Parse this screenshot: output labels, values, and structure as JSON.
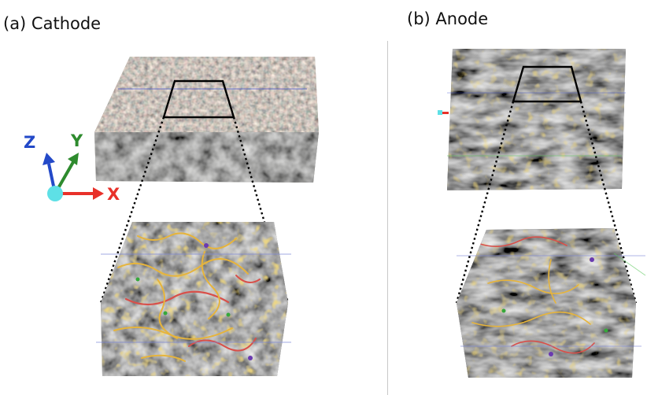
{
  "panels": {
    "cathode": {
      "label": "(a)  Cathode"
    },
    "anode": {
      "label": "(b) Anode"
    }
  },
  "axes": {
    "x": {
      "label": "X",
      "color": "#e8312a"
    },
    "y": {
      "label": "Y",
      "color": "#2e8b2e"
    },
    "z": {
      "label": "Z",
      "color": "#2349c8"
    },
    "origin_color": "#5ee0e6"
  },
  "colors": {
    "network_yellow": "#e6b43c",
    "network_red": "#d8504a",
    "network_green": "#36a83a",
    "network_purple": "#6a3ab0",
    "grain_gray": "#8a8a8a"
  }
}
